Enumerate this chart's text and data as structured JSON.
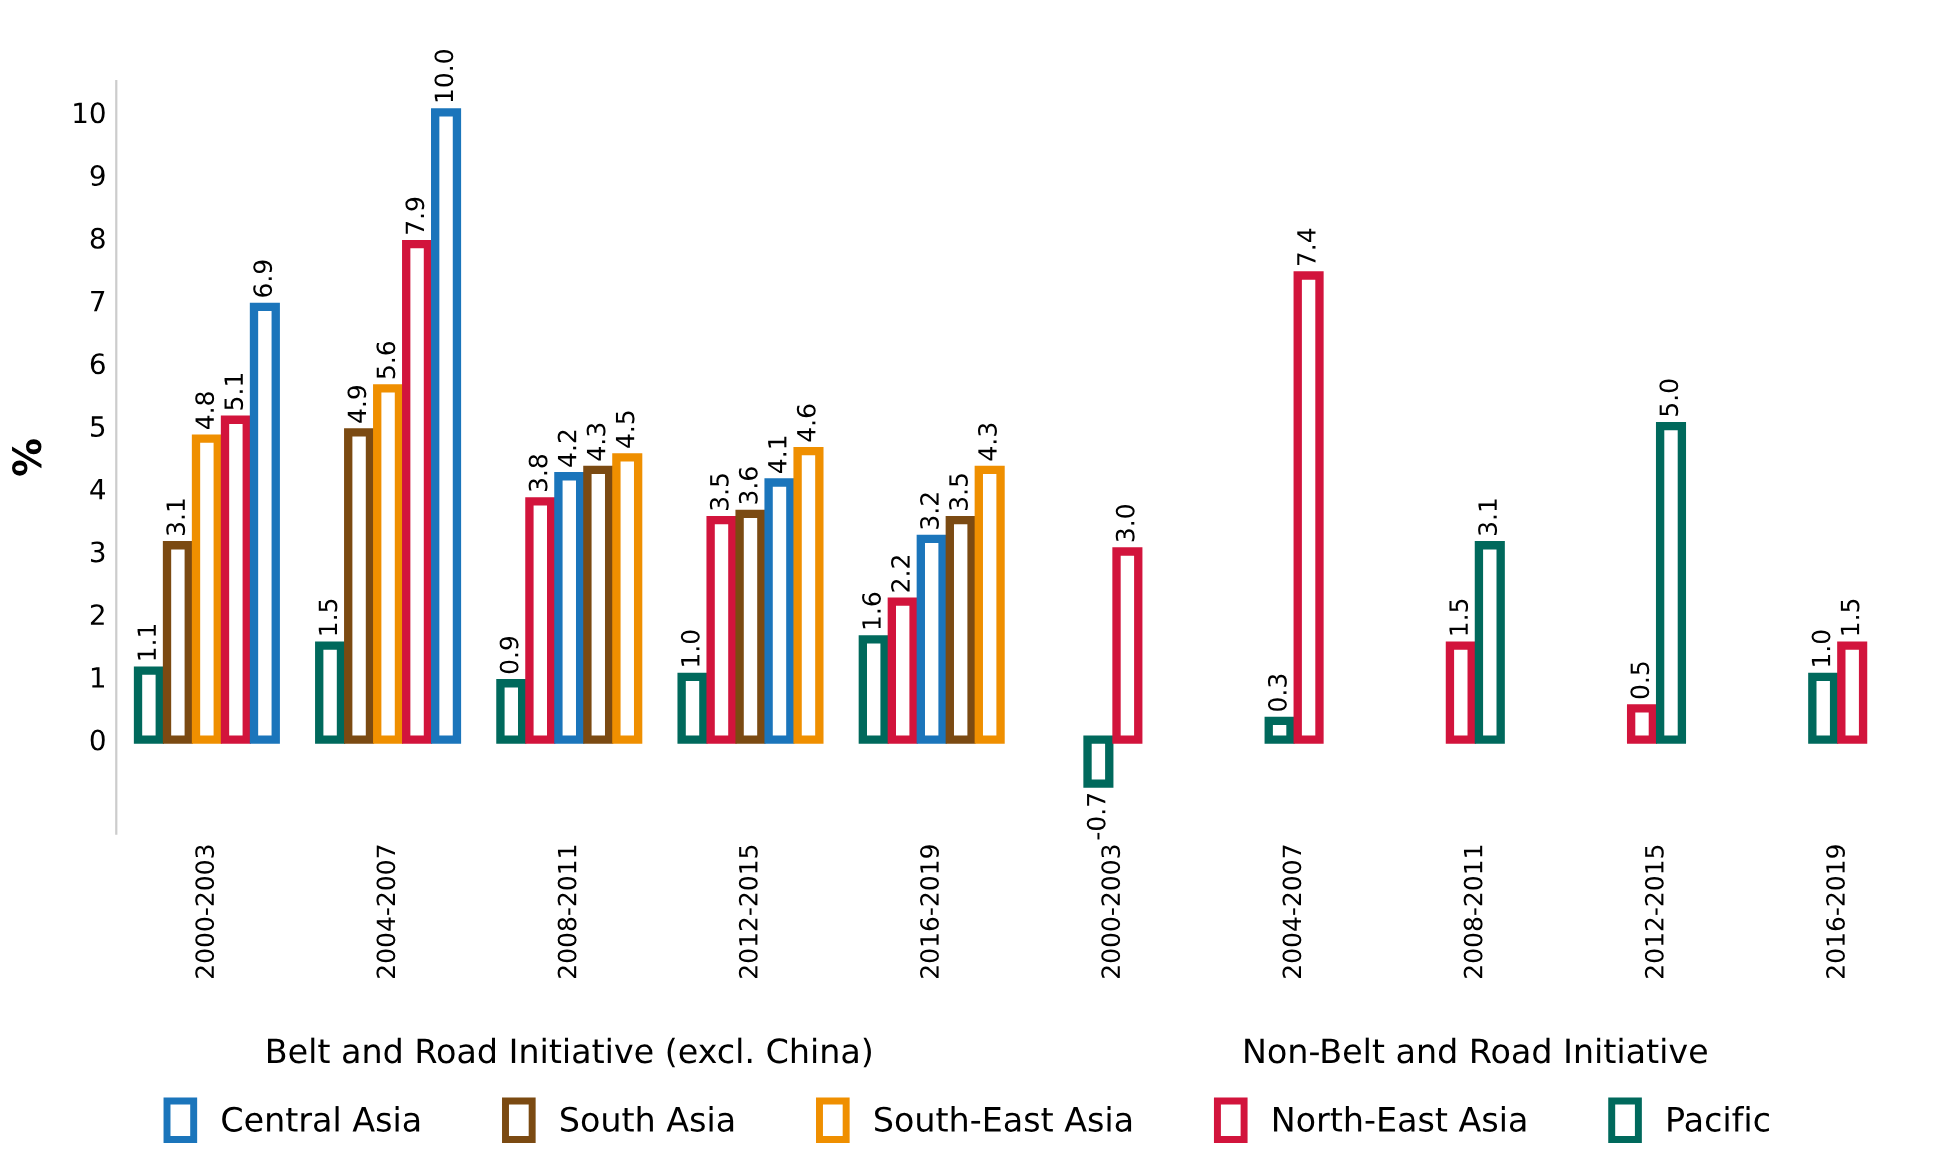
{
  "chart_data": {
    "type": "bar",
    "ylabel": "%",
    "categories": [
      "2000-2003",
      "2004-2007",
      "2008-2011",
      "2012-2015",
      "2016-2019",
      "2000-2003",
      "2004-2007",
      "2008-2011",
      "2012-2015",
      "2016-2019"
    ],
    "series": [
      {
        "name": "Central Asia",
        "color": "#1b75bb",
        "values": [
          6.9,
          10.0,
          4.2,
          4.1,
          3.2,
          null,
          null,
          null,
          null,
          null
        ],
        "value_labels": [
          "6.9",
          "10.0",
          "4.2",
          "4.1",
          "3.2",
          null,
          null,
          null,
          null,
          null
        ]
      },
      {
        "name": "South Asia",
        "color": "#7b4a12",
        "values": [
          3.1,
          4.9,
          4.3,
          3.6,
          3.5,
          null,
          null,
          null,
          null,
          null
        ],
        "value_labels": [
          "3.1",
          "4.9",
          "4.3",
          "3.6",
          "3.5",
          null,
          null,
          null,
          null,
          null
        ]
      },
      {
        "name": "South-East Asia",
        "color": "#ef8f00",
        "values": [
          4.8,
          5.6,
          4.5,
          4.6,
          4.3,
          null,
          null,
          null,
          null,
          null
        ],
        "value_labels": [
          "4.8",
          "5.6",
          "4.5",
          "4.6",
          "4.3",
          null,
          null,
          null,
          null,
          null
        ]
      },
      {
        "name": "North-East Asia",
        "color": "#d2143c",
        "values": [
          5.1,
          7.9,
          3.8,
          3.5,
          2.2,
          3.0,
          7.4,
          1.5,
          0.5,
          1.5
        ],
        "value_labels": [
          "5.1",
          "7.9",
          "3.8",
          "3.5",
          "2.2",
          "3.0",
          "7.4",
          "1.5",
          "0.5",
          "1.5"
        ]
      },
      {
        "name": "Pacific",
        "color": "#00695c",
        "values": [
          1.1,
          1.5,
          0.9,
          1.0,
          1.6,
          -0.7,
          0.3,
          3.1,
          5.0,
          1.0
        ],
        "value_labels": [
          "1.1",
          "1.5",
          "0.9",
          "1.0",
          "1.6",
          "-0.7",
          "0.3",
          "3.1",
          "5.0",
          "1.0"
        ]
      }
    ],
    "ylim": [
      -1.5,
      10.5
    ],
    "yticks": [
      0,
      1,
      2,
      3,
      4,
      5,
      6,
      7,
      8,
      9,
      10
    ],
    "grid": false,
    "legend": "bottom",
    "annotations": [
      "Belt and Road Initiative (excl. China)",
      "Non-Belt and Road Initiative"
    ]
  }
}
